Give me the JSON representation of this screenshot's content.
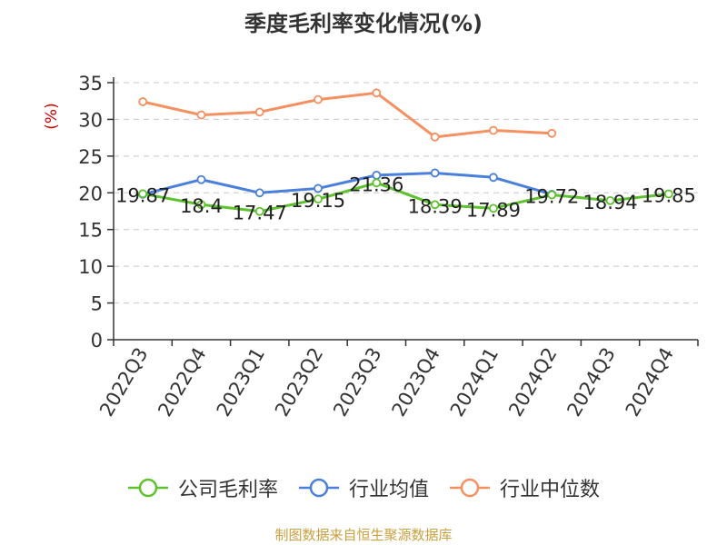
{
  "title": "季度毛利率变化情况(%)",
  "source": "制图数据来自恒生聚源数据库",
  "colors": {
    "axis": "#333333",
    "grid": "#c8c8c8",
    "ylabel": "#cc0000"
  },
  "chart_data": {
    "type": "line",
    "title": "季度毛利率变化情况(%)",
    "ylabel": "(%)",
    "xlabel": "",
    "ylim": [
      0,
      35
    ],
    "yticks": [
      0,
      5,
      10,
      15,
      20,
      25,
      30,
      35
    ],
    "grid": true,
    "legend_position": "bottom",
    "categories": [
      "2022Q3",
      "2022Q4",
      "2023Q1",
      "2023Q2",
      "2023Q3",
      "2023Q4",
      "2024Q1",
      "2024Q2",
      "2024Q3",
      "2024Q4"
    ],
    "series": [
      {
        "name": "公司毛利率",
        "color": "#5ec22f",
        "values": [
          19.87,
          18.4,
          17.47,
          19.15,
          21.36,
          18.39,
          17.89,
          19.72,
          18.94,
          19.85
        ],
        "labels": [
          "19.87",
          "18.4",
          "17.47",
          "19.15",
          "21.36",
          "18.39",
          "17.89",
          "19.72",
          "18.94",
          "19.85"
        ]
      },
      {
        "name": "行业均值",
        "color": "#4a7fdc",
        "values": [
          19.8,
          21.8,
          20.0,
          20.6,
          22.4,
          22.7,
          22.1,
          19.8,
          null,
          null
        ]
      },
      {
        "name": "行业中位数",
        "color": "#f59060",
        "values": [
          32.4,
          30.6,
          31.0,
          32.7,
          33.6,
          27.6,
          28.5,
          28.1,
          null,
          null
        ]
      }
    ]
  }
}
